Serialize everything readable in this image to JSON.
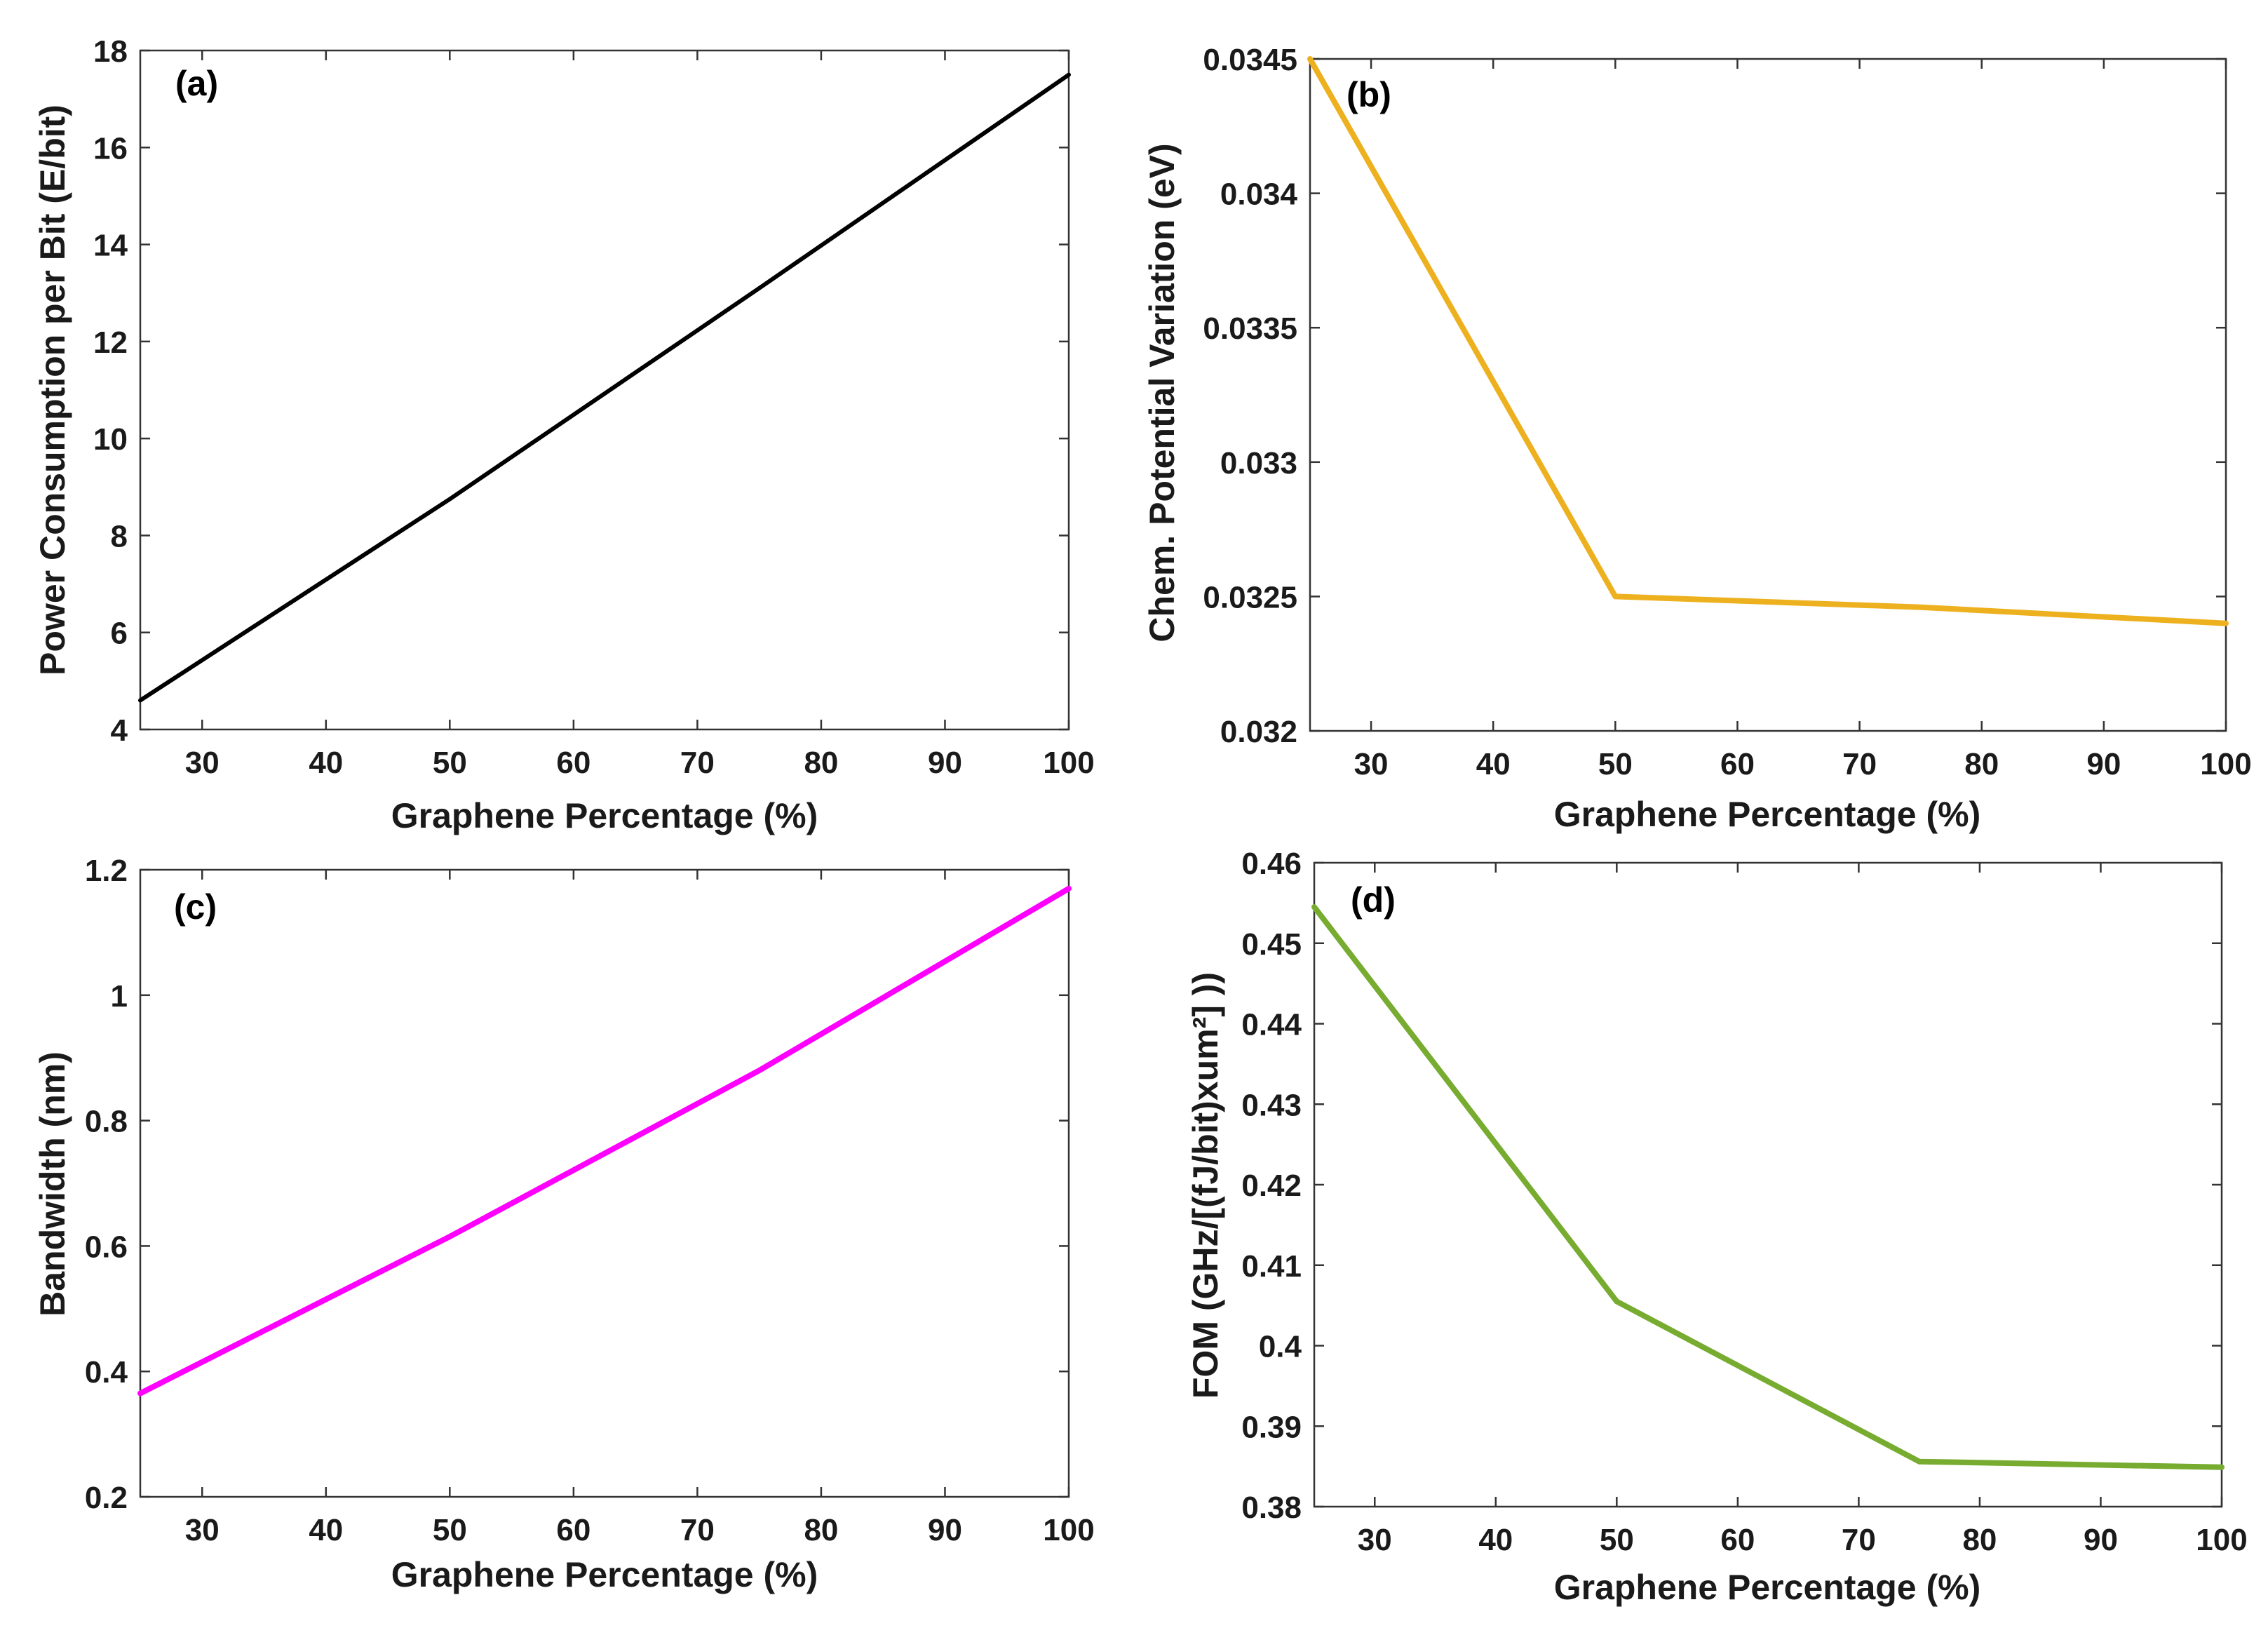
{
  "chart_data": [
    {
      "id": "a",
      "type": "line",
      "panel_label": "(a)",
      "xlabel": "Graphene Percentage (%)",
      "ylabel": "Power Consumption per Bit (E/bit)",
      "xlim": [
        25,
        100
      ],
      "ylim": [
        4,
        18
      ],
      "xticks": [
        "30",
        "40",
        "50",
        "60",
        "70",
        "80",
        "90",
        "100"
      ],
      "yticks": [
        "4",
        "6",
        "8",
        "10",
        "12",
        "14",
        "16",
        "18"
      ],
      "series": [
        {
          "name": "Power Consumption per Bit",
          "color": "#000000",
          "x": [
            25,
            50,
            75,
            100
          ],
          "y": [
            4.6,
            8.75,
            13.1,
            17.5
          ]
        }
      ]
    },
    {
      "id": "b",
      "type": "line",
      "panel_label": "(b)",
      "xlabel": "Graphene Percentage (%)",
      "ylabel": "Chem. Potential Variation (eV)",
      "xlim": [
        25,
        100
      ],
      "ylim": [
        0.032,
        0.0345
      ],
      "xticks": [
        "30",
        "40",
        "50",
        "60",
        "70",
        "80",
        "90",
        "100"
      ],
      "yticks": [
        "0.032",
        "0.0325",
        "0.033",
        "0.0335",
        "0.034",
        "0.0345"
      ],
      "series": [
        {
          "name": "Chem. Potential Variation",
          "color": "#EDB120",
          "x": [
            25,
            50,
            75,
            100
          ],
          "y": [
            0.0345,
            0.0325,
            0.03246,
            0.0324
          ]
        }
      ]
    },
    {
      "id": "c",
      "type": "line",
      "panel_label": "(c)",
      "xlabel": "Graphene Percentage (%)",
      "ylabel": "Bandwidth (nm)",
      "xlim": [
        25,
        100
      ],
      "ylim": [
        0.2,
        1.2
      ],
      "xticks": [
        "30",
        "40",
        "50",
        "60",
        "70",
        "80",
        "90",
        "100"
      ],
      "yticks": [
        "0.2",
        "0.4",
        "0.6",
        "0.8",
        "1",
        "1.2"
      ],
      "series": [
        {
          "name": "Bandwidth",
          "color": "#FF00FF",
          "x": [
            25,
            50,
            75,
            100
          ],
          "y": [
            0.365,
            0.615,
            0.88,
            1.17
          ]
        }
      ]
    },
    {
      "id": "d",
      "type": "line",
      "panel_label": "(d)",
      "xlabel": "Graphene Percentage (%)",
      "ylabel": "FOM (GHz/[(fJ/bit)xum²] ))",
      "xlim": [
        25,
        100
      ],
      "ylim": [
        0.38,
        0.46
      ],
      "xticks": [
        "30",
        "40",
        "50",
        "60",
        "70",
        "80",
        "90",
        "100"
      ],
      "yticks": [
        "0.38",
        "0.39",
        "0.4",
        "0.41",
        "0.42",
        "0.43",
        "0.44",
        "0.45",
        "0.46"
      ],
      "series": [
        {
          "name": "FOM",
          "color": "#77AC30",
          "x": [
            25,
            50,
            75,
            100
          ],
          "y": [
            0.4545,
            0.4055,
            0.3856,
            0.3849
          ]
        }
      ]
    }
  ]
}
